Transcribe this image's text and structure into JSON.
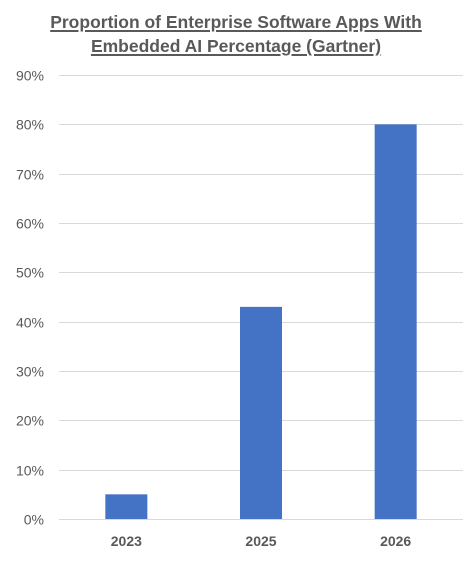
{
  "chart_data": {
    "type": "bar",
    "title_lines": [
      "Proportion of Enterprise Software Apps With",
      "Embedded AI Percentage (Gartner)"
    ],
    "categories": [
      "2023",
      "2025",
      "2026"
    ],
    "values": [
      5,
      43,
      80
    ],
    "value_unit": "%",
    "xlabel": "",
    "ylabel": "",
    "ylim": [
      0,
      90
    ],
    "yticks": [
      0,
      10,
      20,
      30,
      40,
      50,
      60,
      70,
      80,
      90
    ],
    "ytick_labels": [
      "0%",
      "10%",
      "20%",
      "30%",
      "40%",
      "50%",
      "60%",
      "70%",
      "80%",
      "90%"
    ],
    "grid": true,
    "legend": "none",
    "colors": {
      "bar": "#4472C4",
      "grid": "#D9D9D9",
      "text": "#595959"
    }
  }
}
